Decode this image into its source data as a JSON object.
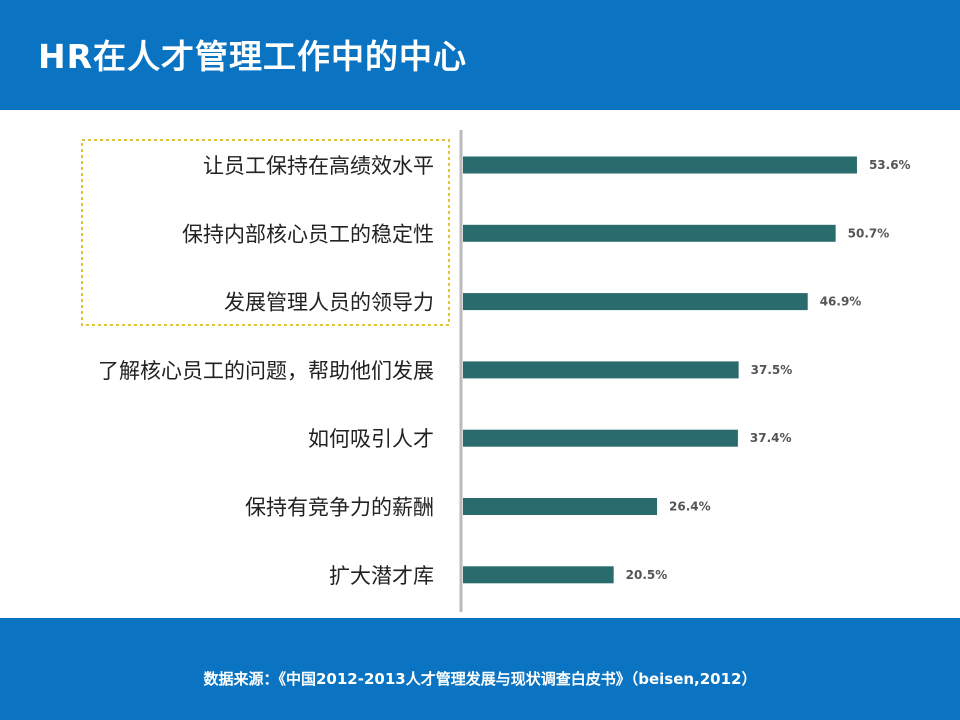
{
  "header": {
    "title": "HR在人才管理工作中的中心"
  },
  "footer": {
    "source": "数据来源：《中国2012-2013人才管理发展与现状调查白皮书》（beisen,2012）"
  },
  "colors": {
    "header_bg": "#0a74c2",
    "bar": "#2a6b6e",
    "highlight_border": "#e0c23c",
    "axis": "#bbbbbb"
  },
  "chart_data": {
    "type": "bar",
    "orientation": "horizontal",
    "title": "",
    "xlabel": "",
    "ylabel": "",
    "xlim": [
      0,
      60
    ],
    "grid": false,
    "categories": [
      "让员工保持在高绩效水平",
      "保持内部核心员工的稳定性",
      "发展管理人员的领导力",
      "了解核心员工的问题，帮助他们发展",
      "如何吸引人才",
      "保持有竞争力的薪酬",
      "扩大潜才库"
    ],
    "values": [
      53.6,
      50.7,
      46.9,
      37.5,
      37.4,
      26.4,
      20.5
    ],
    "value_labels": [
      "53.6%",
      "50.7%",
      "46.9%",
      "37.5%",
      "37.4%",
      "26.4%",
      "20.5%"
    ],
    "highlighted_indices": [
      0,
      1,
      2
    ]
  }
}
